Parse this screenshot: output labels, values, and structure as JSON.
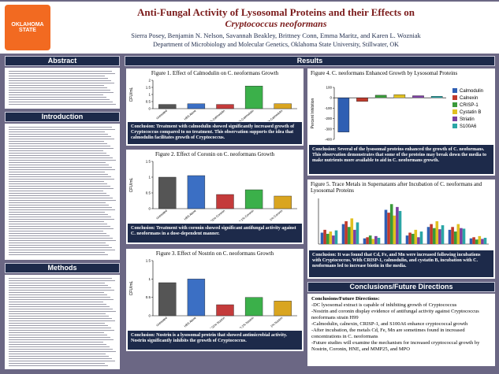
{
  "header": {
    "title": "Anti-Fungal Activity of Lysosomal Proteins and their Effects on",
    "title_species": "Cryptococcus neoformans",
    "authors": "Sierra Posey, Benjamin N. Nelson, Savannah Beakley, Brittney Conn, Emma Maritz, and Karen L. Wozniak",
    "affiliation": "Department of Microbiology and Molecular Genetics, Oklahoma State University, Stillwater, OK",
    "logo": "OKLAHOMA STATE"
  },
  "sections": {
    "abstract": "Abstract",
    "introduction": "Introduction",
    "methods": "Methods",
    "results": "Results",
    "conclusions": "Conclusions/Future Directions"
  },
  "chart_data": [
    {
      "type": "bar",
      "title": "Figure 1. Effect of Calmodulin on C. neoformans Growth",
      "y_label": "CFU/mL",
      "categories": [
        "Untreated",
        "HBS Alone",
        "0.01% Calmodulin",
        "0.1% Calmodulin",
        "1% Calmodulin"
      ],
      "values": [
        0.3,
        0.35,
        0.3,
        1.6,
        0.35
      ],
      "colors": [
        "#555555",
        "#3b6fc4",
        "#c43b3b",
        "#3bb04a",
        "#d9a520"
      ],
      "ylim": [
        0,
        2
      ],
      "yticks": [
        0,
        0.5,
        1,
        1.5,
        2
      ],
      "conclusion": "Conclusion: Treatment with calmodulin showed significantly increased growth of Cryptococcus compared to no treatment. This observation supports the idea that calmodulin facilitates growth of Cryptococcus."
    },
    {
      "type": "bar",
      "title": "Figure 2. Effect of Coronin on C. neoformans Growth",
      "y_label": "CFU/mL",
      "categories": [
        "Untreated",
        "HBS Alone",
        "0.01% Coronin",
        "0.1% Coronin",
        "1% Coronin"
      ],
      "values": [
        1.0,
        1.05,
        0.45,
        0.6,
        0.4
      ],
      "colors": [
        "#555555",
        "#3b6fc4",
        "#c43b3b",
        "#3bb04a",
        "#d9a520"
      ],
      "ylim": [
        0,
        1.5
      ],
      "yticks": [
        0,
        0.5,
        1,
        1.5
      ],
      "conclusion": "Conclusion: Treatment with coronin showed significant antifungal activity against C. neoformans in a dose-dependent manner."
    },
    {
      "type": "bar",
      "title": "Figure 3. Effect of Nostrin on C. neoformans Growth",
      "y_label": "CFU/mL",
      "categories": [
        "Untreated",
        "HBS Alone",
        "0.01% Nostrin",
        "0.1% Nostrin",
        "1% Nostrin"
      ],
      "values": [
        0.9,
        1.0,
        0.3,
        0.5,
        0.4
      ],
      "colors": [
        "#555555",
        "#3b6fc4",
        "#c43b3b",
        "#3bb04a",
        "#d9a520"
      ],
      "ylim": [
        0,
        1.5
      ],
      "yticks": [
        0,
        0.5,
        1,
        1.5
      ],
      "conclusion": "Conclusion: Nostrin is a lysosomal protein that showed antimicrobial activity. Nostrin significantly inhibits the growth of Cryptococcus."
    },
    {
      "type": "bar",
      "title": "Figure 4. C. neoformans Enhanced Growth by Lysosomal Proteins",
      "y_label": "Percent Inhibition",
      "categories": [
        "Calmodulin",
        "Calnexin",
        "CRISP-1",
        "Cystatin B",
        "Striatin",
        "S100A6"
      ],
      "values": [
        -330,
        -35,
        25,
        30,
        20,
        15
      ],
      "colors": [
        "#2f5fb3",
        "#c0392b",
        "#3a9a3a",
        "#e0c020",
        "#7b3fa0",
        "#2aa6a6"
      ],
      "ylim": [
        -400,
        100
      ],
      "yticks": [
        100,
        0,
        -100,
        -200,
        -300,
        -400
      ],
      "legend": "right",
      "conclusion": "Conclusion: Several of the lysosomal proteins enhanced the growth of C. neoformans. This observation demonstrates that some of the proteins may break down the media to make nutrients more available to aid in C. neoformans growth."
    },
    {
      "type": "grouped_bar",
      "title": "Figure 5. Trace Metals in Supernatants after Incubation of C. neoformans and Lysosomal Proteins",
      "categories": [
        null,
        null,
        null,
        null,
        null,
        null,
        null,
        null
      ],
      "series": [
        {
          "color": "#2f5fb3",
          "values": [
            20,
            35,
            10,
            60,
            15,
            30,
            25,
            10
          ]
        },
        {
          "color": "#c0392b",
          "values": [
            25,
            40,
            12,
            55,
            20,
            35,
            30,
            12
          ]
        },
        {
          "color": "#3a9a3a",
          "values": [
            18,
            30,
            15,
            70,
            18,
            28,
            22,
            8
          ]
        },
        {
          "color": "#e0c020",
          "values": [
            22,
            45,
            9,
            50,
            25,
            40,
            35,
            14
          ]
        },
        {
          "color": "#7b3fa0",
          "values": [
            15,
            25,
            14,
            65,
            12,
            26,
            28,
            9
          ]
        },
        {
          "color": "#2aa6a6",
          "values": [
            24,
            38,
            11,
            58,
            22,
            33,
            27,
            11
          ]
        }
      ],
      "ylim": [
        0,
        80
      ],
      "conclusion": "Conclusion: It was found that Cd, Fe, and Mn were increased following incubations with Cryptococcus. With CRISP-1, calmodulin, and cystatin B, incubation with C. neoformans led to increase biotin in the media."
    }
  ],
  "conclusions": {
    "heading": "Conclusions/Future Directions:",
    "items": [
      "-DC lysosomal extract is capable of inhibiting growth of Cryptococcus",
      "-Nostrin and coronin display evidence of antifungal activity against Cryptococcus neoformans strain H99",
      "-Calmodulin, calnexin, CRISP-1, and S100A6 enhance cryptococcal growth",
      "-After incubation, the metals Cd, Fe, Mn are sometimes found in increased concentrations in C. neoformans",
      "-Future studies will examine the mechanism for increased cryptococcal growth by Nostrin, Coronin, HNE, and MMP25, and MPO"
    ]
  }
}
